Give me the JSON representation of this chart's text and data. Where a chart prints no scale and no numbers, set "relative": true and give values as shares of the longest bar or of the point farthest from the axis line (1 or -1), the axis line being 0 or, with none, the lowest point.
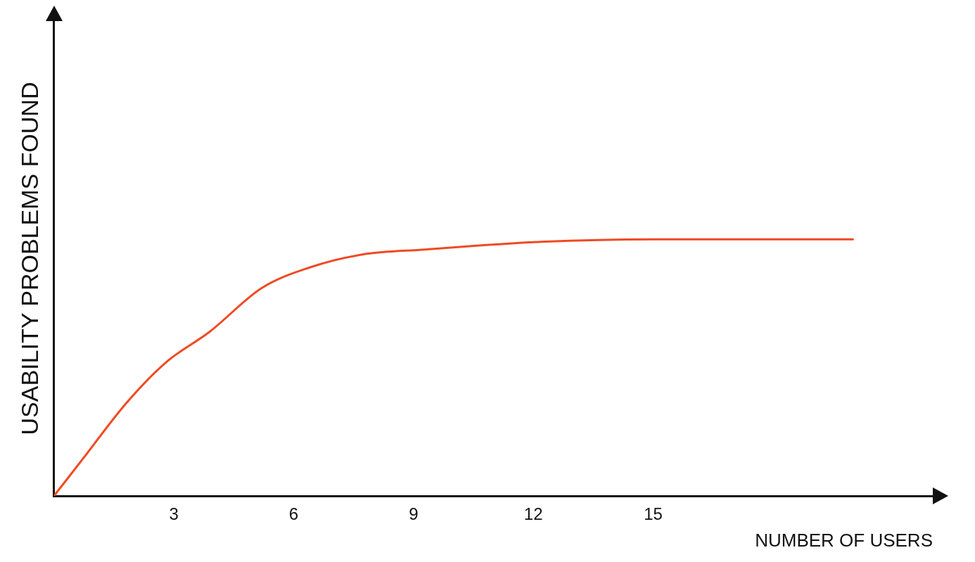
{
  "chart_data": {
    "type": "line",
    "xlabel": "NUMBER OF USERS",
    "ylabel": "USABILITY PROBLEMS FOUND",
    "relative": true,
    "xlim": [
      0,
      22
    ],
    "xticks": [
      3,
      6,
      9,
      12,
      15
    ],
    "grid": false,
    "legend": false,
    "marker": "none",
    "series": [
      {
        "color": "#f04a23",
        "x": [
          0,
          0.7,
          1.8,
          2.8,
          3.9,
          5.2,
          6.4,
          7.7,
          9.3,
          12.2,
          15,
          20
        ],
        "values": [
          0,
          0.14,
          0.36,
          0.52,
          0.64,
          0.81,
          0.89,
          0.94,
          0.96,
          0.99,
          1,
          1
        ]
      }
    ]
  }
}
